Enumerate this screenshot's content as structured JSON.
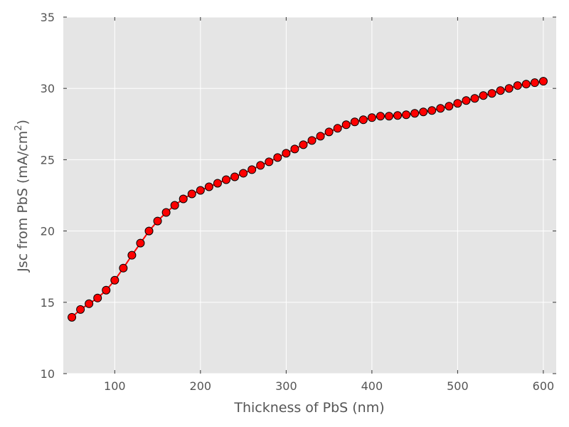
{
  "chart_data": {
    "type": "line",
    "title": "",
    "xlabel": "Thickness of PbS (nm)",
    "ylabel_main": "Jsc from PbS (mA/cm",
    "ylabel_sup": "2",
    "ylabel_close": ")",
    "xlim": [
      40,
      615
    ],
    "ylim": [
      10,
      35
    ],
    "xticks": [
      100,
      200,
      300,
      400,
      500,
      600
    ],
    "yticks": [
      10,
      15,
      20,
      25,
      30,
      35
    ],
    "grid": true,
    "colors": {
      "line": "#ff0000",
      "marker_fill": "#ff0000",
      "marker_edge": "#000000",
      "plot_bg": "#e5e5e5",
      "grid": "#ffffff"
    },
    "series": [
      {
        "x": [
          50,
          60,
          70,
          80,
          90,
          100,
          110,
          120,
          130,
          140,
          150,
          160,
          170,
          180,
          190,
          200,
          210,
          220,
          230,
          240,
          250,
          260,
          270,
          280,
          290,
          300,
          310,
          320,
          330,
          340,
          350,
          360,
          370,
          380,
          390,
          400,
          410,
          420,
          430,
          440,
          450,
          460,
          470,
          480,
          490,
          500,
          510,
          520,
          530,
          540,
          550,
          560,
          570,
          580,
          590,
          600
        ],
        "y": [
          13.95,
          14.5,
          14.9,
          15.3,
          15.85,
          16.55,
          17.4,
          18.3,
          19.15,
          20.0,
          20.7,
          21.3,
          21.8,
          22.25,
          22.6,
          22.85,
          23.1,
          23.35,
          23.6,
          23.8,
          24.05,
          24.3,
          24.6,
          24.85,
          25.15,
          25.45,
          25.75,
          26.05,
          26.35,
          26.65,
          26.95,
          27.2,
          27.45,
          27.65,
          27.8,
          27.95,
          28.05,
          28.05,
          28.1,
          28.15,
          28.25,
          28.35,
          28.45,
          28.6,
          28.75,
          28.95,
          29.15,
          29.3,
          29.5,
          29.65,
          29.85,
          30.0,
          30.2,
          30.3,
          30.4,
          30.5
        ]
      }
    ]
  }
}
